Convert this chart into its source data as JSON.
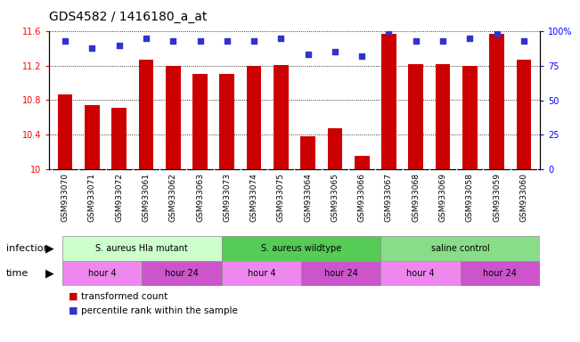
{
  "title": "GDS4582 / 1416180_a_at",
  "samples": [
    "GSM933070",
    "GSM933071",
    "GSM933072",
    "GSM933061",
    "GSM933062",
    "GSM933063",
    "GSM933073",
    "GSM933074",
    "GSM933075",
    "GSM933064",
    "GSM933065",
    "GSM933066",
    "GSM933067",
    "GSM933068",
    "GSM933069",
    "GSM933058",
    "GSM933059",
    "GSM933060"
  ],
  "bar_values": [
    10.87,
    10.74,
    10.71,
    11.27,
    11.2,
    11.1,
    11.1,
    11.2,
    11.21,
    10.38,
    10.47,
    10.15,
    11.57,
    11.22,
    11.22,
    11.2,
    11.57,
    11.27
  ],
  "dot_values": [
    93,
    88,
    90,
    95,
    93,
    93,
    93,
    93,
    95,
    83,
    85,
    82,
    100,
    93,
    93,
    95,
    98,
    93
  ],
  "ylim": [
    10.0,
    11.6
  ],
  "y2lim": [
    0,
    100
  ],
  "yticks": [
    10.0,
    10.4,
    10.8,
    11.2,
    11.6
  ],
  "ytick_labels": [
    "10",
    "10.4",
    "10.8",
    "11.2",
    "11.6"
  ],
  "y2ticks": [
    0,
    25,
    50,
    75,
    100
  ],
  "y2tick_labels": [
    "0",
    "25",
    "50",
    "75",
    "100%"
  ],
  "bar_color": "#cc0000",
  "dot_color": "#3333cc",
  "background_color": "#ffffff",
  "plot_bg_color": "#ffffff",
  "xlabel_bg_color": "#d0d0d0",
  "infection_colors": [
    "#ccffcc",
    "#55cc55",
    "#88dd88"
  ],
  "time_colors": [
    "#ee88ee",
    "#cc55cc"
  ],
  "infection_groups": [
    {
      "label": "S. aureus Hla mutant",
      "start": 0,
      "end": 6
    },
    {
      "label": "S. aureus wildtype",
      "start": 6,
      "end": 12
    },
    {
      "label": "saline control",
      "start": 12,
      "end": 18
    }
  ],
  "time_groups": [
    {
      "label": "hour 4",
      "start": 0,
      "end": 3,
      "color_idx": 0
    },
    {
      "label": "hour 24",
      "start": 3,
      "end": 6,
      "color_idx": 1
    },
    {
      "label": "hour 4",
      "start": 6,
      "end": 9,
      "color_idx": 0
    },
    {
      "label": "hour 24",
      "start": 9,
      "end": 12,
      "color_idx": 1
    },
    {
      "label": "hour 4",
      "start": 12,
      "end": 15,
      "color_idx": 0
    },
    {
      "label": "hour 24",
      "start": 15,
      "end": 18,
      "color_idx": 1
    }
  ],
  "infection_label": "infection",
  "time_label": "time",
  "legend_bar_label": "transformed count",
  "legend_dot_label": "percentile rank within the sample",
  "title_fontsize": 10,
  "tick_fontsize": 7,
  "annot_fontsize": 7,
  "label_fontsize": 8
}
